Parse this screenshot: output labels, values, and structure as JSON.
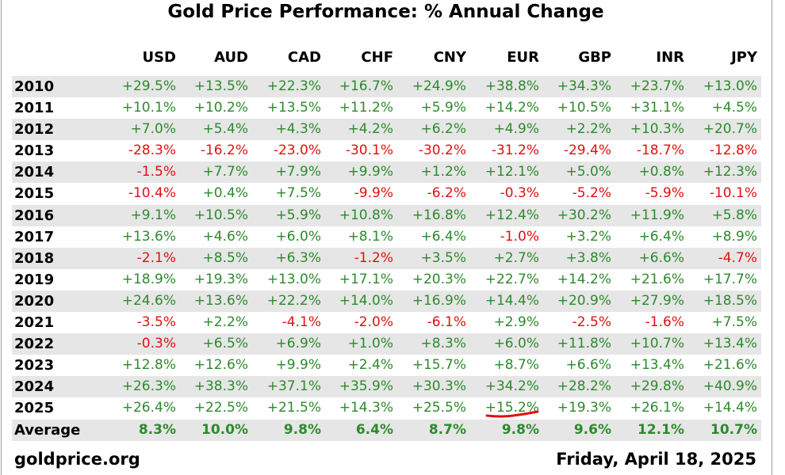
{
  "title": "Gold Price Performance: % Annual Change",
  "currencies": [
    "USD",
    "AUD",
    "CAD",
    "CHF",
    "CNY",
    "EUR",
    "GBP",
    "INR",
    "JPY"
  ],
  "rows": [
    {
      "year": "2010",
      "values": [
        "+29.5%",
        "+13.5%",
        "+22.3%",
        "+16.7%",
        "+24.9%",
        "+38.8%",
        "+34.3%",
        "+23.7%",
        "+13.0%"
      ]
    },
    {
      "year": "2011",
      "values": [
        "+10.1%",
        "+10.2%",
        "+13.5%",
        "+11.2%",
        "+5.9%",
        "+14.2%",
        "+10.5%",
        "+31.1%",
        "+4.5%"
      ]
    },
    {
      "year": "2012",
      "values": [
        "+7.0%",
        "+5.4%",
        "+4.3%",
        "+4.2%",
        "+6.2%",
        "+4.9%",
        "+2.2%",
        "+10.3%",
        "+20.7%"
      ]
    },
    {
      "year": "2013",
      "values": [
        "-28.3%",
        "-16.2%",
        "-23.0%",
        "-30.1%",
        "-30.2%",
        "-31.2%",
        "-29.4%",
        "-18.7%",
        "-12.8%"
      ]
    },
    {
      "year": "2014",
      "values": [
        "-1.5%",
        "+7.7%",
        "+7.9%",
        "+9.9%",
        "+1.2%",
        "+12.1%",
        "+5.0%",
        "+0.8%",
        "+12.3%"
      ]
    },
    {
      "year": "2015",
      "values": [
        "-10.4%",
        "+0.4%",
        "+7.5%",
        "-9.9%",
        "-6.2%",
        "-0.3%",
        "-5.2%",
        "-5.9%",
        "-10.1%"
      ]
    },
    {
      "year": "2016",
      "values": [
        "+9.1%",
        "+10.5%",
        "+5.9%",
        "+10.8%",
        "+16.8%",
        "+12.4%",
        "+30.2%",
        "+11.9%",
        "+5.8%"
      ]
    },
    {
      "year": "2017",
      "values": [
        "+13.6%",
        "+4.6%",
        "+6.0%",
        "+8.1%",
        "+6.4%",
        "-1.0%",
        "+3.2%",
        "+6.4%",
        "+8.9%"
      ]
    },
    {
      "year": "2018",
      "values": [
        "-2.1%",
        "+8.5%",
        "+6.3%",
        "-1.2%",
        "+3.5%",
        "+2.7%",
        "+3.8%",
        "+6.6%",
        "-4.7%"
      ]
    },
    {
      "year": "2019",
      "values": [
        "+18.9%",
        "+19.3%",
        "+13.0%",
        "+17.1%",
        "+20.3%",
        "+22.7%",
        "+14.2%",
        "+21.6%",
        "+17.7%"
      ]
    },
    {
      "year": "2020",
      "values": [
        "+24.6%",
        "+13.6%",
        "+22.2%",
        "+14.0%",
        "+16.9%",
        "+14.4%",
        "+20.9%",
        "+27.9%",
        "+18.5%"
      ]
    },
    {
      "year": "2021",
      "values": [
        "-3.5%",
        "+2.2%",
        "-4.1%",
        "-2.0%",
        "-6.1%",
        "+2.9%",
        "-2.5%",
        "-1.6%",
        "+7.5%"
      ]
    },
    {
      "year": "2022",
      "values": [
        "-0.3%",
        "+6.5%",
        "+6.9%",
        "+1.0%",
        "+8.3%",
        "+6.0%",
        "+11.8%",
        "+10.7%",
        "+13.4%"
      ]
    },
    {
      "year": "2023",
      "values": [
        "+12.8%",
        "+12.6%",
        "+9.9%",
        "+2.4%",
        "+15.7%",
        "+8.7%",
        "+6.6%",
        "+13.4%",
        "+21.6%"
      ]
    },
    {
      "year": "2024",
      "values": [
        "+26.3%",
        "+38.3%",
        "+37.1%",
        "+35.9%",
        "+30.3%",
        "+34.2%",
        "+28.2%",
        "+29.8%",
        "+40.9%"
      ]
    },
    {
      "year": "2025",
      "values": [
        "+26.4%",
        "+22.5%",
        "+21.5%",
        "+14.3%",
        "+25.5%",
        "+15.2%",
        "+19.3%",
        "+26.1%",
        "+14.4%"
      ]
    },
    {
      "year": "Average",
      "values": [
        "8.3%",
        "10.0%",
        "9.8%",
        "6.4%",
        "8.7%",
        "9.8%",
        "9.6%",
        "12.1%",
        "10.7%"
      ]
    }
  ],
  "footer": {
    "site": "goldprice.org",
    "date": "Friday, April 18, 2025"
  },
  "colors": {
    "positive": "#2c8a2c",
    "negative": "#e01010",
    "shade": "#e6e6e6",
    "annotation": "#e01010"
  }
}
